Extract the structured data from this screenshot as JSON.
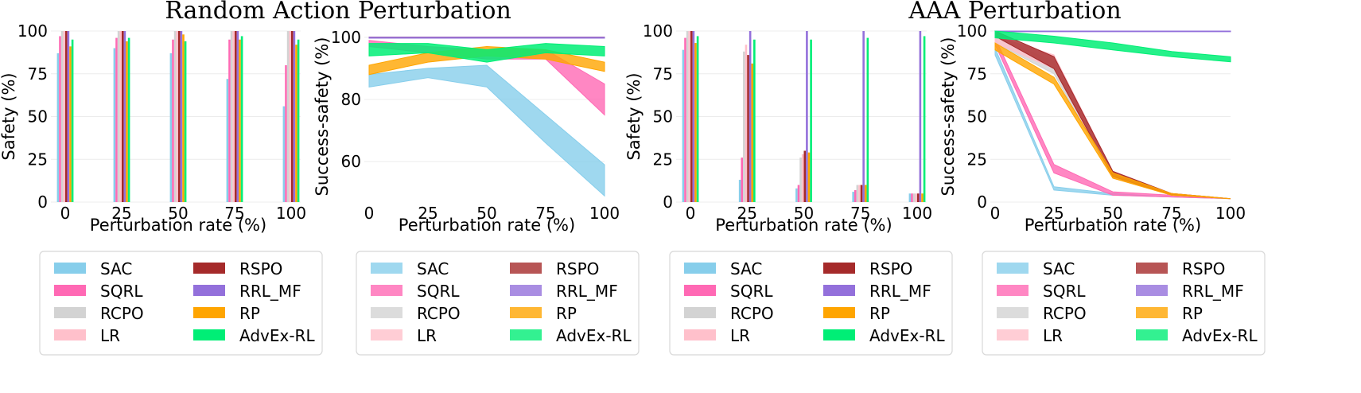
{
  "titles": {
    "left": "Random Action Perturbation",
    "right": "AAA Perturbation"
  },
  "colors": {
    "SAC": "#87ceeb",
    "SQRL": "#ff69b4",
    "RCPO": "#d3d3d3",
    "LR": "#ffc0cb",
    "RSPO": "#a52a2a",
    "RRL_MF": "#9370db",
    "RP": "#ffa500",
    "AdvEx-RL": "#00ee76"
  },
  "chart_data": [
    {
      "id": "random-safety",
      "type": "bar",
      "xlabel": "Perturbation rate (%)",
      "ylabel": "Safety (%)",
      "categories": [
        "0",
        "25",
        "50",
        "75",
        "100"
      ],
      "yticks": [
        "0",
        "25",
        "50",
        "75",
        "100"
      ],
      "ylim": [
        0,
        100
      ],
      "series": [
        {
          "name": "SAC",
          "values": [
            87,
            90,
            87,
            72,
            56
          ]
        },
        {
          "name": "SQRL",
          "values": [
            97,
            96,
            95,
            95,
            80
          ]
        },
        {
          "name": "RCPO",
          "values": [
            100,
            100,
            100,
            100,
            100
          ]
        },
        {
          "name": "LR",
          "values": [
            100,
            100,
            100,
            100,
            100
          ]
        },
        {
          "name": "RSPO",
          "values": [
            100,
            100,
            100,
            100,
            100
          ]
        },
        {
          "name": "RRL_MF",
          "values": [
            100,
            100,
            100,
            100,
            100
          ]
        },
        {
          "name": "RP",
          "values": [
            91,
            94,
            98,
            95,
            92
          ]
        },
        {
          "name": "AdvEx-RL",
          "values": [
            95,
            96,
            94,
            97,
            95
          ]
        }
      ],
      "legend": [
        "SAC",
        "RSPO",
        "SQRL",
        "RRL_MF",
        "RCPO",
        "RP",
        "LR",
        "AdvEx-RL"
      ]
    },
    {
      "id": "random-success",
      "type": "area",
      "xlabel": "Perturbation rate (%)",
      "ylabel": "Success-safety (%)",
      "x": [
        0,
        25,
        50,
        75,
        100
      ],
      "xticks": [
        "0",
        "25",
        "50",
        "75",
        "100"
      ],
      "yticks": [
        "60",
        "80",
        "100"
      ],
      "ylim": [
        47,
        102
      ],
      "series": [
        {
          "name": "SAC",
          "lower": [
            84,
            87,
            84,
            66,
            49
          ],
          "upper": [
            88,
            90,
            91,
            75,
            59
          ]
        },
        {
          "name": "SQRL",
          "lower": [
            97,
            95,
            93,
            93,
            75
          ],
          "upper": [
            99,
            97,
            96,
            96,
            85
          ]
        },
        {
          "name": "RCPO",
          "lower": [
            99.7,
            99.7,
            99.7,
            99.7,
            99.7
          ],
          "upper": [
            100,
            100,
            100,
            100,
            100
          ]
        },
        {
          "name": "LR",
          "lower": [
            99.7,
            99.7,
            99.7,
            99.7,
            99.7
          ],
          "upper": [
            100,
            100,
            100,
            100,
            100
          ]
        },
        {
          "name": "RSPO",
          "lower": [
            99.7,
            99.7,
            99.7,
            99.7,
            99.7
          ],
          "upper": [
            100,
            100,
            100,
            100,
            100
          ]
        },
        {
          "name": "RRL_MF",
          "lower": [
            99.7,
            99.7,
            99.7,
            99.7,
            99.7
          ],
          "upper": [
            100,
            100,
            100,
            100,
            100
          ]
        },
        {
          "name": "RP",
          "lower": [
            88,
            92,
            94,
            93,
            89
          ],
          "upper": [
            91,
            95,
            97,
            96,
            92
          ]
        },
        {
          "name": "AdvEx-RL",
          "lower": [
            94,
            95,
            92,
            95,
            94
          ],
          "upper": [
            98,
            98,
            96,
            98,
            97
          ]
        }
      ],
      "legend": [
        "SAC",
        "RSPO",
        "SQRL",
        "RRL_MF",
        "RCPO",
        "RP",
        "LR",
        "AdvEx-RL"
      ]
    },
    {
      "id": "aaa-safety",
      "type": "bar",
      "xlabel": "Perturbation rate (%)",
      "ylabel": "Safety (%)",
      "categories": [
        "0",
        "25",
        "50",
        "75",
        "100"
      ],
      "yticks": [
        "0",
        "25",
        "50",
        "75",
        "100"
      ],
      "ylim": [
        0,
        100
      ],
      "series": [
        {
          "name": "SAC",
          "values": [
            89,
            13,
            8,
            6,
            5
          ]
        },
        {
          "name": "SQRL",
          "values": [
            96,
            26,
            10,
            7,
            5
          ]
        },
        {
          "name": "RCPO",
          "values": [
            100,
            88,
            26,
            10,
            5
          ]
        },
        {
          "name": "LR",
          "values": [
            100,
            92,
            28,
            10,
            5
          ]
        },
        {
          "name": "RSPO",
          "values": [
            100,
            86,
            30,
            10,
            5
          ]
        },
        {
          "name": "RRL_MF",
          "values": [
            100,
            100,
            100,
            100,
            100
          ]
        },
        {
          "name": "RP",
          "values": [
            93,
            81,
            29,
            10,
            5
          ]
        },
        {
          "name": "AdvEx-RL",
          "values": [
            97,
            95,
            95,
            96,
            97
          ]
        }
      ],
      "legend": [
        "SAC",
        "RSPO",
        "SQRL",
        "RRL_MF",
        "RCPO",
        "RP",
        "LR",
        "AdvEx-RL"
      ]
    },
    {
      "id": "aaa-success",
      "type": "area",
      "xlabel": "Perturbation rate (%)",
      "ylabel": "Success-safety (%)",
      "x": [
        0,
        25,
        50,
        75,
        100
      ],
      "xticks": [
        "0",
        "25",
        "50",
        "75",
        "100"
      ],
      "yticks": [
        "0",
        "25",
        "50",
        "75",
        "100"
      ],
      "ylim": [
        0,
        100
      ],
      "series": [
        {
          "name": "SAC",
          "lower": [
            86,
            7,
            4,
            3,
            2
          ],
          "upper": [
            90,
            9,
            5,
            3,
            2
          ]
        },
        {
          "name": "SQRL",
          "lower": [
            92,
            17,
            4,
            3,
            2
          ],
          "upper": [
            96,
            22,
            6,
            4,
            2
          ]
        },
        {
          "name": "RCPO",
          "lower": [
            93,
            75,
            14,
            4,
            2
          ],
          "upper": [
            97,
            82,
            18,
            5,
            2
          ]
        },
        {
          "name": "LR",
          "lower": [
            93,
            78,
            14,
            4,
            2
          ],
          "upper": [
            97,
            86,
            18,
            5,
            2
          ]
        },
        {
          "name": "RSPO",
          "lower": [
            97,
            78,
            15,
            4,
            2
          ],
          "upper": [
            100,
            85,
            18,
            5,
            2
          ]
        },
        {
          "name": "RRL_MF",
          "lower": [
            99.6,
            99.6,
            99.6,
            99.6,
            99.6
          ],
          "upper": [
            100,
            100,
            100,
            100,
            100
          ]
        },
        {
          "name": "RP",
          "lower": [
            89,
            69,
            14,
            4,
            2
          ],
          "upper": [
            93,
            73,
            17,
            5,
            2
          ]
        },
        {
          "name": "AdvEx-RL",
          "lower": [
            96,
            93,
            89,
            85,
            82
          ],
          "upper": [
            100,
            97,
            93,
            88,
            85
          ]
        }
      ],
      "legend": [
        "SAC",
        "RSPO",
        "SQRL",
        "RRL_MF",
        "RCPO",
        "RP",
        "LR",
        "AdvEx-RL"
      ]
    }
  ]
}
